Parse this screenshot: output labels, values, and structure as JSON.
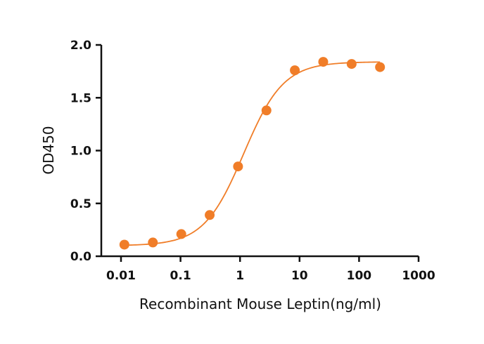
{
  "chart_data": {
    "type": "scatter",
    "xlabel": "Recombinant Mouse Leptin(ng/ml)",
    "ylabel": "OD450",
    "x_scale": "log",
    "xlim": [
      0.005,
      1000
    ],
    "ylim": [
      0,
      2.0
    ],
    "x_ticks": [
      {
        "value": 0.01,
        "label": "0.01"
      },
      {
        "value": 0.1,
        "label": "0.1"
      },
      {
        "value": 1,
        "label": "1"
      },
      {
        "value": 10,
        "label": "10"
      },
      {
        "value": 100,
        "label": "100"
      },
      {
        "value": 1000,
        "label": "1000"
      }
    ],
    "y_ticks": [
      {
        "value": 0,
        "label": "0.0"
      },
      {
        "value": 0.5,
        "label": "0.5"
      },
      {
        "value": 1.0,
        "label": "1.0"
      },
      {
        "value": 1.5,
        "label": "1.5"
      },
      {
        "value": 2.0,
        "label": "2.0"
      }
    ],
    "grid": false,
    "legend": "none",
    "color": "#f07d28",
    "series": [
      {
        "points": [
          {
            "x": 0.0114,
            "y": 0.11
          },
          {
            "x": 0.0343,
            "y": 0.13
          },
          {
            "x": 0.103,
            "y": 0.21
          },
          {
            "x": 0.309,
            "y": 0.39
          },
          {
            "x": 0.926,
            "y": 0.85
          },
          {
            "x": 2.78,
            "y": 1.38
          },
          {
            "x": 8.33,
            "y": 1.76
          },
          {
            "x": 25,
            "y": 1.84
          },
          {
            "x": 75,
            "y": 1.82
          },
          {
            "x": 225,
            "y": 1.79
          }
        ],
        "fit": {
          "model": "4PL",
          "bottom": 0.1,
          "top": 1.84,
          "ec50": 1.15,
          "hill": 1.3,
          "x_range": [
            0.0114,
            225
          ]
        }
      }
    ]
  }
}
